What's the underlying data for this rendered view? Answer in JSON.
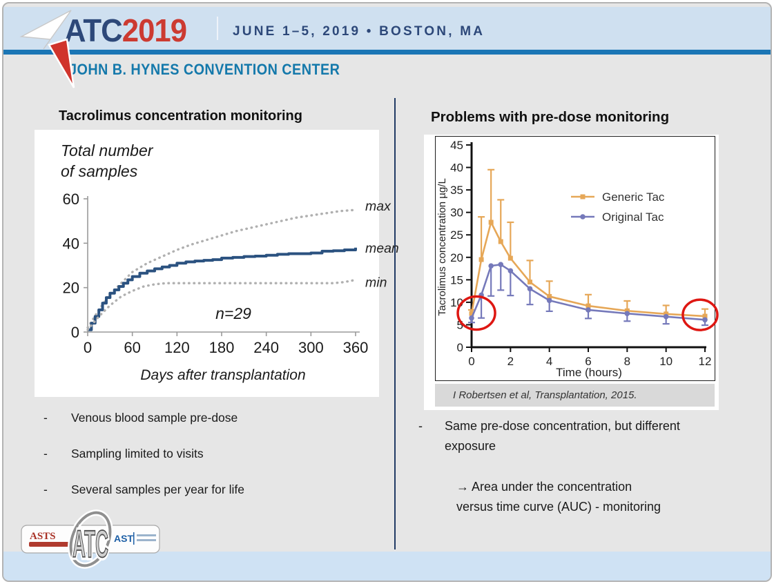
{
  "header": {
    "logo_atc": "ATC",
    "logo_year": "2019",
    "date_location": "JUNE 1–5, 2019 • BOSTON, MA",
    "venue": "JOHN B. HYNES CONVENTION CENTER"
  },
  "left": {
    "title": "Tacrolimus concentration monitoring",
    "chart_heading_line1": "Total number",
    "chart_heading_line2": "of samples",
    "bullets": [
      "Venous blood sample pre-dose",
      "Sampling limited to visits",
      "Several samples per year for life"
    ],
    "dash": "-"
  },
  "right": {
    "title": "Problems with pre-dose monitoring",
    "citation": "I Robertsen et al, Transplantation, 2015.",
    "bullet": "Same pre-dose concentration, but different exposure",
    "arrow_line1": "→ Area under the concentration",
    "arrow_line2": "versus time curve (AUC) - monitoring",
    "dash": "-"
  },
  "footer": {
    "asts_label": "ASTS",
    "ast_label": "AST",
    "emblem_label": "ATC"
  },
  "colors": {
    "band": "#cfe0f0",
    "rule_blue": "#1b76b5",
    "navy": "#2d4879",
    "logo_red": "#cc3a31",
    "venue_teal": "#1579ab",
    "body_gray": "#e6e6e6",
    "bottom_band": "#cfe2f4",
    "divider_navy": "#203a64",
    "mean_blue": "#2b5280",
    "dotted_gray": "#b0b0b0",
    "generic_orange": "#e6a757",
    "original_purple": "#7579ba",
    "red_circle": "#de1712",
    "citation_strip": "#d9d9d9"
  },
  "chart_data": [
    {
      "type": "line",
      "title": "Tacrolimus concentration monitoring",
      "ylabel": "Total number of samples",
      "xlabel": "Days after transplantation",
      "annotation": "n=29",
      "xlim": [
        0,
        360
      ],
      "ylim": [
        0,
        60
      ],
      "xticks": [
        0,
        60,
        120,
        180,
        240,
        300,
        360
      ],
      "yticks": [
        0,
        20,
        40,
        60
      ],
      "grid": false,
      "series": [
        {
          "name": "max",
          "style": "dotted",
          "color": "#b0b0b0",
          "x": [
            0,
            15,
            30,
            45,
            60,
            80,
            100,
            120,
            140,
            160,
            180,
            200,
            220,
            240,
            260,
            280,
            300,
            320,
            340,
            360
          ],
          "y": [
            2,
            10,
            17,
            22,
            27,
            31,
            34,
            37,
            39.5,
            41.5,
            43.5,
            45.5,
            47,
            48.5,
            50,
            51.5,
            52.5,
            53.5,
            54.5,
            55
          ]
        },
        {
          "name": "mean",
          "style": "step",
          "color": "#2b5280",
          "x": [
            0,
            5,
            10,
            15,
            20,
            25,
            30,
            36,
            42,
            48,
            54,
            60,
            70,
            80,
            90,
            100,
            110,
            120,
            132,
            144,
            156,
            168,
            180,
            195,
            210,
            225,
            240,
            255,
            270,
            285,
            300,
            315,
            330,
            345,
            360
          ],
          "y": [
            1,
            4,
            7,
            10,
            13,
            15.5,
            17.5,
            19,
            20.5,
            22,
            23.5,
            25,
            26.5,
            27.5,
            28.5,
            29.3,
            30,
            31,
            31.6,
            32,
            32.3,
            32.6,
            33.3,
            33.6,
            34,
            34.2,
            34.6,
            35,
            35.3,
            35.3,
            35.6,
            36.4,
            36.6,
            37,
            38
          ]
        },
        {
          "name": "min",
          "style": "dotted",
          "color": "#b0b0b0",
          "x": [
            0,
            15,
            30,
            45,
            60,
            75,
            90,
            105,
            120,
            200,
            280,
            330,
            345,
            360
          ],
          "y": [
            1,
            7,
            12,
            16,
            18.5,
            20.5,
            21.5,
            22,
            22,
            22,
            22,
            22,
            22.5,
            23.5
          ]
        }
      ]
    },
    {
      "type": "line",
      "title": "Problems with pre-dose monitoring",
      "ylabel": "Tacrolimus concentration µg/L",
      "xlabel": "Time (hours)",
      "xlim": [
        0,
        12
      ],
      "ylim": [
        0,
        45
      ],
      "xticks": [
        0,
        2,
        4,
        6,
        8,
        10,
        12
      ],
      "yticks": [
        0,
        5,
        10,
        15,
        20,
        25,
        30,
        35,
        40,
        45
      ],
      "grid": false,
      "legend_position": "upper right",
      "x": [
        0,
        0.5,
        1,
        1.5,
        2,
        3,
        4,
        6,
        8,
        10,
        12
      ],
      "series": [
        {
          "name": "Generic Tac",
          "color": "#e6a757",
          "marker": "square",
          "error_direction": "up",
          "y": [
            7.5,
            19.5,
            27.8,
            23.5,
            19.8,
            14.5,
            11.3,
            9.2,
            8.1,
            7.4,
            6.9
          ],
          "err_high": [
            8.3,
            29,
            39.5,
            32.8,
            27.8,
            19.3,
            14.7,
            11.7,
            10.3,
            9.3,
            8.5
          ]
        },
        {
          "name": "Original Tac",
          "color": "#7579ba",
          "marker": "circle",
          "error_direction": "down",
          "y": [
            6.5,
            11.6,
            18.1,
            18.4,
            17.0,
            13.0,
            10.4,
            8.3,
            7.5,
            6.8,
            6.1
          ],
          "err_low": [
            5.5,
            6.5,
            11.4,
            12.7,
            11.5,
            9.5,
            8.0,
            6.4,
            5.8,
            5.2,
            4.9
          ]
        }
      ],
      "annotations": {
        "red_circles": [
          {
            "x": 0.25,
            "y": 7.6
          },
          {
            "x": 11.75,
            "y": 7.2
          }
        ],
        "red_circle_meaning": "same pre-dose concentration highlighted at t=0 and t=12"
      }
    }
  ]
}
